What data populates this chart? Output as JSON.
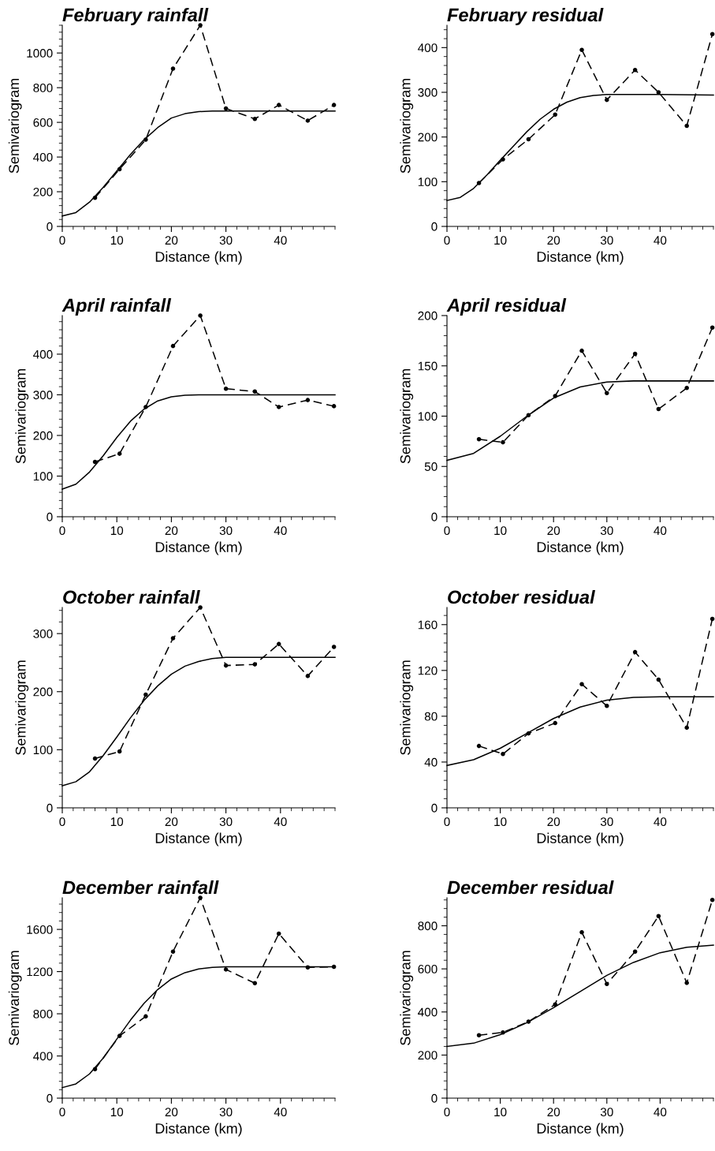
{
  "chart_data": [
    {
      "type": "line",
      "title": "February rainfall",
      "xlabel": "Distance (km)",
      "ylabel": "Semivariogram",
      "xlim": [
        0,
        50
      ],
      "xticks": [
        0,
        10,
        20,
        30,
        40
      ],
      "ylim": [
        0,
        1160
      ],
      "yticks": [
        0,
        200,
        400,
        600,
        800,
        1000
      ],
      "series": [
        {
          "color": "#000000",
          "marker": "circle",
          "line_style": "dashed",
          "x": [
            6,
            10.5,
            15.3,
            20.3,
            25.3,
            30,
            35.3,
            39.7,
            45,
            49.8
          ],
          "values": [
            165,
            330,
            500,
            910,
            1160,
            680,
            620,
            700,
            610,
            700
          ]
        },
        {
          "color": "#000000",
          "marker": "none",
          "line_style": "solid",
          "x": [
            0,
            2.5,
            5,
            7.5,
            10,
            12.5,
            15,
            17.5,
            20,
            22.5,
            25,
            27.5,
            30,
            40,
            50
          ],
          "values": [
            60,
            80,
            140,
            225,
            320,
            415,
            500,
            570,
            625,
            650,
            662,
            665,
            665,
            665,
            665
          ]
        }
      ]
    },
    {
      "type": "line",
      "title": "February residual",
      "xlabel": "Distance (km)",
      "ylabel": "Semivariogram",
      "xlim": [
        0,
        50
      ],
      "xticks": [
        0,
        10,
        20,
        30,
        40
      ],
      "ylim": [
        0,
        450
      ],
      "yticks": [
        0,
        100,
        200,
        300,
        400
      ],
      "series": [
        {
          "color": "#000000",
          "marker": "circle",
          "line_style": "dashed",
          "x": [
            6,
            10.5,
            15.3,
            20.3,
            25.3,
            30,
            35.3,
            39.7,
            45,
            49.8
          ],
          "values": [
            97,
            150,
            195,
            250,
            395,
            283,
            350,
            300,
            225,
            430
          ]
        },
        {
          "color": "#000000",
          "marker": "none",
          "line_style": "solid",
          "x": [
            0,
            2.5,
            5,
            7.5,
            10,
            12.5,
            15,
            17.5,
            20,
            22.5,
            25,
            27.5,
            30,
            40,
            50
          ],
          "values": [
            58,
            65,
            85,
            115,
            148,
            180,
            212,
            240,
            262,
            278,
            288,
            293,
            295,
            295,
            294
          ]
        }
      ]
    },
    {
      "type": "line",
      "title": "April rainfall",
      "xlabel": "Distance (km)",
      "ylabel": "Semivariogram",
      "xlim": [
        0,
        50
      ],
      "xticks": [
        0,
        10,
        20,
        30,
        40
      ],
      "ylim": [
        0,
        495
      ],
      "yticks": [
        0,
        100,
        200,
        300,
        400
      ],
      "series": [
        {
          "color": "#000000",
          "marker": "circle",
          "line_style": "dashed",
          "x": [
            6,
            10.5,
            15.3,
            20.3,
            25.3,
            30,
            35.3,
            39.7,
            45,
            49.8
          ],
          "values": [
            135,
            155,
            270,
            420,
            495,
            315,
            308,
            270,
            287,
            272
          ]
        },
        {
          "color": "#000000",
          "marker": "none",
          "line_style": "solid",
          "x": [
            0,
            2.5,
            5,
            7.5,
            10,
            12.5,
            15,
            17.5,
            20,
            22.5,
            25,
            50
          ],
          "values": [
            68,
            80,
            110,
            150,
            195,
            235,
            265,
            285,
            295,
            299,
            300,
            300
          ]
        }
      ]
    },
    {
      "type": "line",
      "title": "April residual",
      "xlabel": "Distance (km)",
      "ylabel": "Semivariogram",
      "xlim": [
        0,
        50
      ],
      "xticks": [
        0,
        10,
        20,
        30,
        40
      ],
      "ylim": [
        0,
        200
      ],
      "yticks": [
        0,
        50,
        100,
        150,
        200
      ],
      "series": [
        {
          "color": "#000000",
          "marker": "circle",
          "line_style": "dashed",
          "x": [
            6,
            10.5,
            15.3,
            20.3,
            25.3,
            30,
            35.3,
            39.7,
            45,
            49.8
          ],
          "values": [
            77,
            74,
            101,
            120,
            165,
            123,
            162,
            107,
            128,
            188
          ]
        },
        {
          "color": "#000000",
          "marker": "none",
          "line_style": "solid",
          "x": [
            0,
            5,
            10,
            15,
            20,
            25,
            30,
            35,
            50
          ],
          "values": [
            56,
            63,
            80,
            100,
            118,
            129,
            134,
            135,
            135
          ]
        }
      ]
    },
    {
      "type": "line",
      "title": "October rainfall",
      "xlabel": "Distance (km)",
      "ylabel": "Semivariogram",
      "xlim": [
        0,
        50
      ],
      "xticks": [
        0,
        10,
        20,
        30,
        40
      ],
      "ylim": [
        0,
        345
      ],
      "yticks": [
        0,
        100,
        200,
        300
      ],
      "series": [
        {
          "color": "#000000",
          "marker": "circle",
          "line_style": "dashed",
          "x": [
            6,
            10.5,
            15.3,
            20.3,
            25.3,
            30,
            35.3,
            39.7,
            45,
            49.8
          ],
          "values": [
            85,
            97,
            195,
            292,
            345,
            245,
            247,
            282,
            227,
            277
          ]
        },
        {
          "color": "#000000",
          "marker": "none",
          "line_style": "solid",
          "x": [
            0,
            2.5,
            5,
            7.5,
            10,
            12.5,
            15,
            17.5,
            20,
            22.5,
            25,
            27.5,
            30,
            50
          ],
          "values": [
            38,
            45,
            62,
            90,
            122,
            155,
            185,
            210,
            230,
            244,
            252,
            257,
            259,
            259
          ]
        }
      ]
    },
    {
      "type": "line",
      "title": "October residual",
      "xlabel": "Distance (km)",
      "ylabel": "Semivariogram",
      "xlim": [
        0,
        50
      ],
      "xticks": [
        0,
        10,
        20,
        30,
        40
      ],
      "ylim": [
        0,
        175
      ],
      "yticks": [
        0,
        40,
        80,
        120,
        160
      ],
      "series": [
        {
          "color": "#000000",
          "marker": "circle",
          "line_style": "dashed",
          "x": [
            6,
            10.5,
            15.3,
            20.3,
            25.3,
            30,
            35.3,
            39.7,
            45,
            49.8
          ],
          "values": [
            54,
            47,
            65,
            74,
            108,
            89,
            136,
            112,
            70,
            165
          ]
        },
        {
          "color": "#000000",
          "marker": "none",
          "line_style": "solid",
          "x": [
            0,
            5,
            10,
            15,
            20,
            25,
            30,
            35,
            40,
            50
          ],
          "values": [
            37,
            42,
            52,
            65,
            78,
            88,
            94,
            96.5,
            97,
            97
          ]
        }
      ]
    },
    {
      "type": "line",
      "title": "December rainfall",
      "xlabel": "Distance (km)",
      "ylabel": "Semivariogram",
      "xlim": [
        0,
        50
      ],
      "xticks": [
        0,
        10,
        20,
        30,
        40
      ],
      "ylim": [
        0,
        1900
      ],
      "yticks": [
        0,
        400,
        800,
        1200,
        1600
      ],
      "series": [
        {
          "color": "#000000",
          "marker": "circle",
          "line_style": "dashed",
          "x": [
            6,
            10.5,
            15.3,
            20.3,
            25.3,
            30,
            35.3,
            39.7,
            45,
            49.8
          ],
          "values": [
            275,
            590,
            775,
            1390,
            1900,
            1220,
            1090,
            1560,
            1240,
            1245
          ]
        },
        {
          "color": "#000000",
          "marker": "none",
          "line_style": "solid",
          "x": [
            0,
            2.5,
            5,
            7.5,
            10,
            12.5,
            15,
            17.5,
            20,
            22.5,
            25,
            27.5,
            30,
            50
          ],
          "values": [
            100,
            135,
            230,
            380,
            560,
            740,
            900,
            1030,
            1130,
            1190,
            1225,
            1240,
            1245,
            1245
          ]
        }
      ]
    },
    {
      "type": "line",
      "title": "December residual",
      "xlabel": "Distance (km)",
      "ylabel": "Semivariogram",
      "xlim": [
        0,
        50
      ],
      "xticks": [
        0,
        10,
        20,
        30,
        40
      ],
      "ylim": [
        0,
        930
      ],
      "yticks": [
        0,
        200,
        400,
        600,
        800
      ],
      "series": [
        {
          "color": "#000000",
          "marker": "circle",
          "line_style": "dashed",
          "x": [
            6,
            10.5,
            15.3,
            20.3,
            25.3,
            30,
            35.3,
            39.7,
            45,
            49.8
          ],
          "values": [
            292,
            305,
            355,
            435,
            770,
            530,
            680,
            845,
            535,
            920
          ]
        },
        {
          "color": "#000000",
          "marker": "none",
          "line_style": "solid",
          "x": [
            0,
            5,
            10,
            15,
            20,
            25,
            30,
            35,
            40,
            45,
            50
          ],
          "values": [
            240,
            255,
            295,
            350,
            420,
            495,
            570,
            630,
            675,
            700,
            710
          ]
        }
      ]
    }
  ]
}
